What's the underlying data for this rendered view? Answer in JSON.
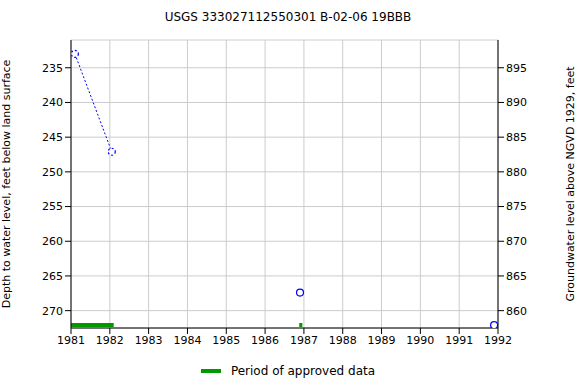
{
  "chart_data": {
    "type": "line",
    "title": "USGS 333027112550301 B-02-06 19BBB",
    "y_label": "Depth to water level, feet below land surface",
    "y2_label": "Groundwater level above NGVD 1929, feet",
    "xlim": [
      1981,
      1992
    ],
    "xticks": [
      1981,
      1982,
      1983,
      1984,
      1985,
      1986,
      1987,
      1988,
      1989,
      1990,
      1991,
      1992
    ],
    "ylim": [
      231,
      272.5
    ],
    "yticks": [
      235,
      240,
      245,
      250,
      255,
      260,
      265,
      270
    ],
    "y2lim": [
      857.5,
      899
    ],
    "y2ticks": [
      860,
      865,
      870,
      875,
      880,
      885,
      890,
      895
    ],
    "grid": true,
    "series": [
      {
        "color": "#0000ff",
        "marker": "circle",
        "line_style": "dotted",
        "x": [
          1981.1,
          1982.05
        ],
        "values": [
          233,
          247.1
        ]
      },
      {
        "color": "#0000ff",
        "marker": "circle",
        "line_style": "none",
        "x": [
          1986.9,
          1991.9
        ],
        "values": [
          267.4,
          272.1
        ]
      }
    ],
    "approved_periods": {
      "name": "Period of approved data",
      "color": "#009900",
      "ranges": [
        [
          1981.0,
          1982.1
        ],
        [
          1986.88,
          1986.96
        ],
        [
          1991.85,
          1992.0
        ]
      ]
    }
  }
}
